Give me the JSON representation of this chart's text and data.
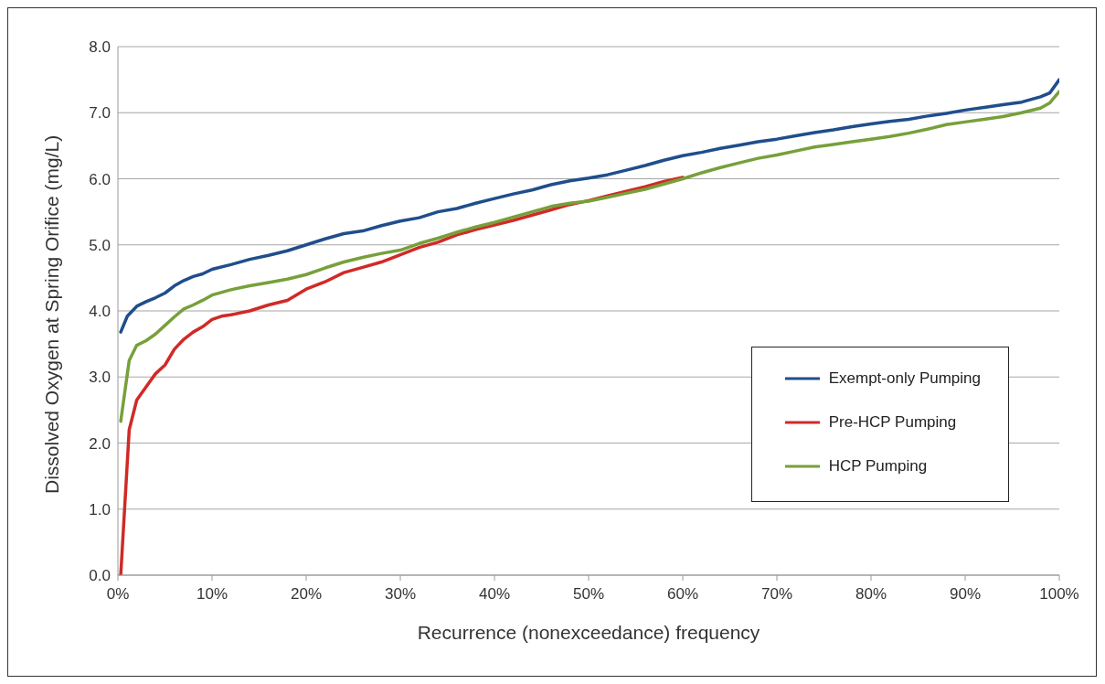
{
  "chart_data": {
    "type": "line",
    "xlabel": "Recurrence (nonexceedance) frequency",
    "ylabel": "Dissolved Oxygen at Spring Orifice  (mg/L)",
    "xlim": [
      0,
      100
    ],
    "xticks": [
      {
        "value": 0,
        "label": "0%"
      },
      {
        "value": 10,
        "label": "10%"
      },
      {
        "value": 20,
        "label": "20%"
      },
      {
        "value": 30,
        "label": "30%"
      },
      {
        "value": 40,
        "label": "40%"
      },
      {
        "value": 50,
        "label": "50%"
      },
      {
        "value": 60,
        "label": "60%"
      },
      {
        "value": 70,
        "label": "70%"
      },
      {
        "value": 80,
        "label": "80%"
      },
      {
        "value": 90,
        "label": "90%"
      },
      {
        "value": 100,
        "label": "100%"
      }
    ],
    "ylim": [
      0,
      8
    ],
    "yticks": [
      {
        "value": 0,
        "label": "0.0"
      },
      {
        "value": 1,
        "label": "1.0"
      },
      {
        "value": 2,
        "label": "2.0"
      },
      {
        "value": 3,
        "label": "3.0"
      },
      {
        "value": 4,
        "label": "4.0"
      },
      {
        "value": 5,
        "label": "5.0"
      },
      {
        "value": 6,
        "label": "6.0"
      },
      {
        "value": 7,
        "label": "7.0"
      },
      {
        "value": 8,
        "label": "8.0"
      }
    ],
    "grid": "y",
    "legend": "bottom right",
    "marker": "none",
    "line_style": "solid",
    "series": [
      {
        "name": "Exempt-only Pumping",
        "color": "#1f4e8c",
        "x": [
          0.3,
          1,
          2,
          3,
          4,
          5,
          6,
          7,
          8,
          9,
          10,
          12,
          14,
          16,
          18,
          20,
          22,
          24,
          26,
          28,
          30,
          32,
          34,
          36,
          38,
          40,
          42,
          44,
          46,
          48,
          50,
          52,
          54,
          56,
          58,
          60,
          62,
          64,
          66,
          68,
          70,
          72,
          74,
          76,
          78,
          80,
          82,
          84,
          86,
          88,
          90,
          92,
          94,
          96,
          98,
          99,
          100
        ],
        "values": [
          3.68,
          3.92,
          4.07,
          4.14,
          4.2,
          4.27,
          4.38,
          4.46,
          4.52,
          4.56,
          4.63,
          4.7,
          4.78,
          4.84,
          4.91,
          5.0,
          5.09,
          5.17,
          5.21,
          5.29,
          5.36,
          5.41,
          5.5,
          5.55,
          5.63,
          5.7,
          5.77,
          5.83,
          5.91,
          5.97,
          6.01,
          6.06,
          6.13,
          6.2,
          6.28,
          6.35,
          6.4,
          6.46,
          6.51,
          6.56,
          6.6,
          6.65,
          6.7,
          6.74,
          6.79,
          6.83,
          6.87,
          6.9,
          6.95,
          6.99,
          7.04,
          7.08,
          7.12,
          7.16,
          7.24,
          7.3,
          7.5
        ]
      },
      {
        "name": "Pre-HCP Pumping",
        "color": "#d02a27",
        "x": [
          0.3,
          1.2,
          2,
          3,
          4,
          5,
          6,
          7,
          8,
          9,
          10,
          11,
          12,
          14,
          16,
          18,
          20,
          22,
          24,
          26,
          28,
          30,
          32,
          34,
          36,
          38,
          40,
          42,
          44,
          46,
          48,
          50,
          52,
          54,
          56,
          58,
          60
        ],
        "values": [
          0,
          2.2,
          2.65,
          2.85,
          3.05,
          3.18,
          3.42,
          3.57,
          3.68,
          3.76,
          3.87,
          3.92,
          3.94,
          4.0,
          4.09,
          4.16,
          4.33,
          4.44,
          4.58,
          4.66,
          4.74,
          4.85,
          4.96,
          5.04,
          5.15,
          5.23,
          5.3,
          5.37,
          5.45,
          5.53,
          5.61,
          5.67,
          5.74,
          5.81,
          5.88,
          5.96,
          6.02
        ]
      },
      {
        "name": "HCP Pumping",
        "color": "#77a03a",
        "x": [
          0.3,
          1.2,
          2,
          3,
          4,
          5,
          6,
          7,
          8,
          9,
          10,
          12,
          14,
          16,
          18,
          20,
          22,
          24,
          26,
          28,
          30,
          32,
          34,
          36,
          38,
          40,
          42,
          44,
          46,
          48,
          50,
          52,
          54,
          56,
          58,
          60,
          62,
          64,
          66,
          68,
          70,
          72,
          74,
          76,
          78,
          80,
          82,
          84,
          86,
          88,
          90,
          92,
          94,
          96,
          98,
          99,
          100
        ],
        "values": [
          2.33,
          3.25,
          3.48,
          3.55,
          3.65,
          3.78,
          3.91,
          4.03,
          4.09,
          4.16,
          4.24,
          4.32,
          4.38,
          4.43,
          4.48,
          4.55,
          4.65,
          4.74,
          4.81,
          4.87,
          4.92,
          5.02,
          5.1,
          5.19,
          5.27,
          5.34,
          5.42,
          5.5,
          5.58,
          5.63,
          5.66,
          5.72,
          5.78,
          5.84,
          5.92,
          6.0,
          6.09,
          6.17,
          6.24,
          6.31,
          6.36,
          6.42,
          6.48,
          6.52,
          6.56,
          6.6,
          6.64,
          6.69,
          6.75,
          6.82,
          6.86,
          6.9,
          6.94,
          7.0,
          7.07,
          7.15,
          7.32
        ]
      }
    ]
  }
}
